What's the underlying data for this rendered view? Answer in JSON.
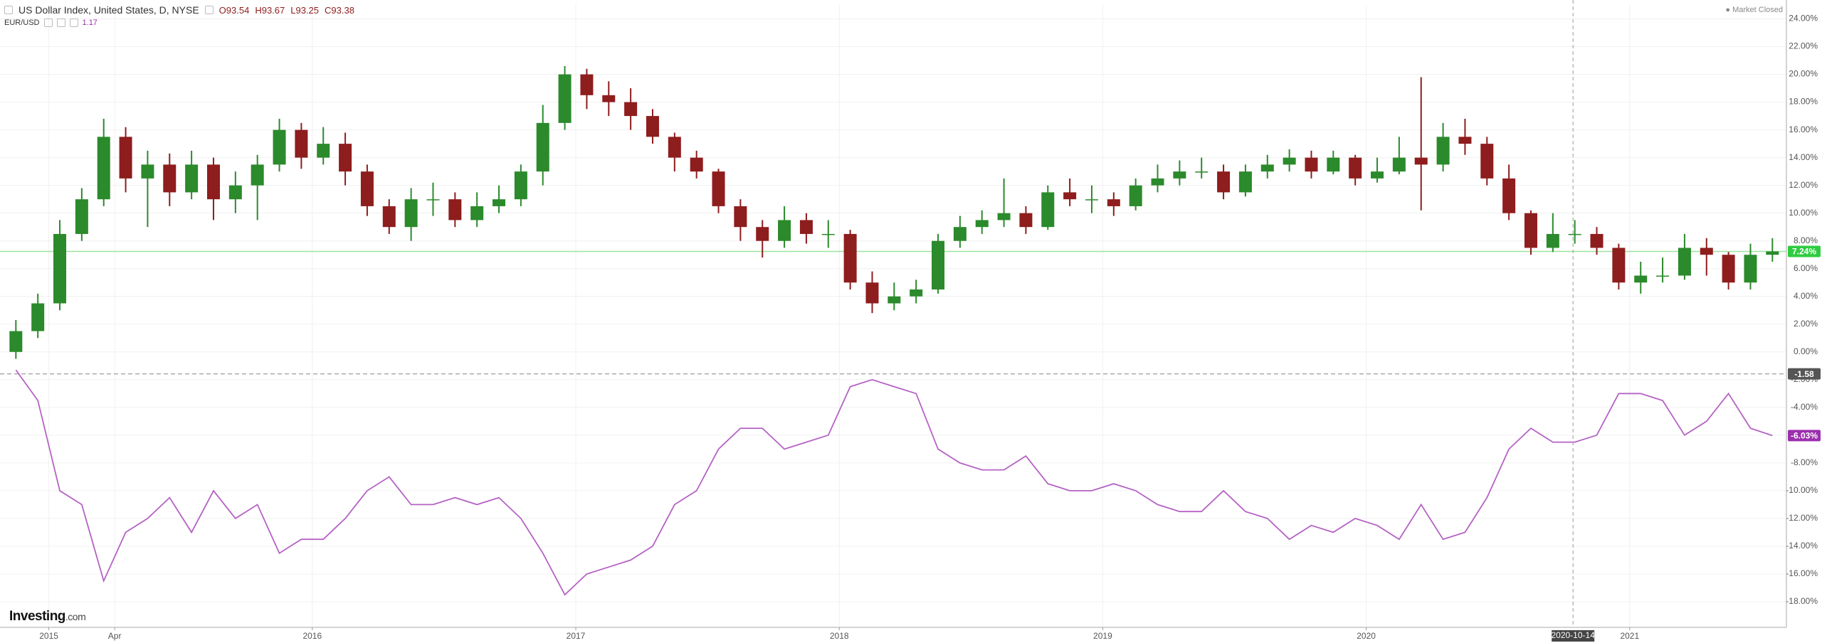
{
  "header": {
    "title": "US Dollar Index, United States, D, NYSE",
    "ohlc": [
      "O93.54",
      "H93.67",
      "L93.25",
      "C93.38"
    ],
    "compare": "EUR/USD",
    "compare_value": "1.17",
    "status": "Market Closed"
  },
  "logo": [
    "Investing",
    ".com"
  ],
  "chart_data": {
    "type": "candlestick",
    "x": [
      "2014-11",
      "2014-12",
      "2015-01",
      "2015-02",
      "2015-03",
      "2015-04",
      "2015-05",
      "2015-06",
      "2015-07",
      "2015-08",
      "2015-09",
      "2015-10",
      "2015-11",
      "2015-12",
      "2016-01",
      "2016-02",
      "2016-03",
      "2016-04",
      "2016-05",
      "2016-06",
      "2016-07",
      "2016-08",
      "2016-09",
      "2016-10",
      "2016-11",
      "2016-12",
      "2017-01",
      "2017-02",
      "2017-03",
      "2017-04",
      "2017-05",
      "2017-06",
      "2017-07",
      "2017-08",
      "2017-09",
      "2017-10",
      "2017-11",
      "2017-12",
      "2018-01",
      "2018-02",
      "2018-03",
      "2018-04",
      "2018-05",
      "2018-06",
      "2018-07",
      "2018-08",
      "2018-09",
      "2018-10",
      "2018-11",
      "2018-12",
      "2019-01",
      "2019-02",
      "2019-03",
      "2019-04",
      "2019-05",
      "2019-06",
      "2019-07",
      "2019-08",
      "2019-09",
      "2019-10",
      "2019-11",
      "2019-12",
      "2020-01",
      "2020-02",
      "2020-03",
      "2020-04",
      "2020-05",
      "2020-06",
      "2020-07",
      "2020-08",
      "2020-09",
      "2020-10",
      "2020-11",
      "2020-12",
      "2021-01",
      "2021-02",
      "2021-03",
      "2021-04",
      "2021-05",
      "2021-06",
      "2021-07"
    ],
    "series": [
      {
        "type": "candlestick",
        "up_color": "#2b8a2b",
        "down_color": "#8e1d1d",
        "open": [
          0,
          1.5,
          3.5,
          8.5,
          11,
          15.5,
          12.5,
          13.5,
          11.5,
          13.5,
          11,
          12,
          13.5,
          16,
          14,
          15,
          13,
          10.5,
          9,
          11,
          11,
          9.5,
          10.5,
          11,
          13,
          16.5,
          20,
          18.5,
          18,
          17,
          15.5,
          14,
          13,
          10.5,
          9,
          8,
          9.5,
          8.5,
          8.5,
          5,
          3.5,
          4,
          4.5,
          8,
          9,
          9.5,
          10,
          9,
          11.5,
          11,
          11,
          10.5,
          12,
          12.5,
          13,
          13,
          11.5,
          13,
          13.5,
          14,
          13,
          14,
          12.5,
          13,
          14,
          13.5,
          15.5,
          15,
          12.5,
          10,
          7.5,
          8.5,
          8.5,
          7.5,
          5,
          5.5,
          5.5,
          7.5,
          7,
          5,
          7
        ],
        "high": [
          2.3,
          4.2,
          9.5,
          11.8,
          16.8,
          16.2,
          14.5,
          14.3,
          14.5,
          14,
          13,
          14.2,
          16.8,
          16.5,
          16.2,
          15.8,
          13.5,
          11,
          11.8,
          12.2,
          11.5,
          11.5,
          12,
          13.5,
          17.8,
          20.6,
          20.4,
          19.5,
          19,
          17.5,
          15.8,
          14.5,
          13.2,
          11,
          9.5,
          10.5,
          10,
          9.5,
          8.8,
          5.8,
          5,
          5.2,
          8.5,
          9.8,
          10.2,
          12.5,
          10.5,
          12,
          12.5,
          12,
          11.5,
          12.5,
          13.5,
          13.8,
          14,
          13.5,
          13.5,
          14.2,
          14.6,
          14.5,
          14.5,
          14.2,
          14,
          15.5,
          19.8,
          16.5,
          16.8,
          15.5,
          13.5,
          10.2,
          10,
          9.5,
          9,
          7.8,
          6.5,
          6.8,
          8.5,
          8.2,
          7.2,
          7.8,
          8.2
        ],
        "low": [
          -0.5,
          1,
          3,
          8,
          10.5,
          11.5,
          9,
          10.5,
          11,
          9.5,
          10,
          9.5,
          13,
          13.2,
          13.5,
          12,
          9.8,
          8.5,
          8,
          9.8,
          9,
          9,
          10,
          10.5,
          12,
          16,
          17.5,
          17,
          16,
          15,
          13,
          12.5,
          10,
          8,
          6.8,
          7.5,
          7.8,
          7.5,
          4.5,
          2.8,
          3,
          3.5,
          4.2,
          7.5,
          8.5,
          9,
          8.5,
          8.8,
          10.5,
          10,
          9.8,
          10.2,
          11.5,
          12,
          12.5,
          11,
          11.2,
          12.5,
          13,
          12.5,
          12.8,
          12,
          12.2,
          12.8,
          10.2,
          13,
          14.2,
          12,
          9.5,
          7,
          7.2,
          7.8,
          7,
          4.5,
          4.2,
          5,
          5.2,
          5.5,
          4.5,
          4.5,
          6.5
        ],
        "close": [
          1.5,
          3.5,
          8.5,
          11,
          15.5,
          12.5,
          13.5,
          11.5,
          13.5,
          11,
          12,
          13.5,
          16,
          14,
          15,
          13,
          10.5,
          9,
          11,
          11,
          9.5,
          10.5,
          11,
          13,
          16.5,
          20,
          18.5,
          18,
          17,
          15.5,
          14,
          13,
          10.5,
          9,
          8,
          9.5,
          8.5,
          8.5,
          5,
          3.5,
          4,
          4.5,
          8,
          9,
          9.5,
          10,
          9,
          11.5,
          11,
          11,
          10.5,
          12,
          12.5,
          13,
          13,
          11.5,
          13,
          13.5,
          14,
          13,
          14,
          12.5,
          13,
          14,
          13.5,
          15.5,
          15,
          12.5,
          10,
          7.5,
          8.5,
          8.5,
          7.5,
          5,
          5.5,
          5.5,
          7.5,
          7,
          5,
          7,
          7.24
        ]
      },
      {
        "type": "line",
        "color": "#b562c4",
        "values": [
          -1.3,
          -3.5,
          -10,
          -11,
          -16.5,
          -13,
          -12,
          -10.5,
          -13,
          -10,
          -12,
          -11,
          -14.5,
          -13.5,
          -13.5,
          -12,
          -10,
          -9,
          -11,
          -11,
          -10.5,
          -11,
          -10.5,
          -12,
          -14.5,
          -17.5,
          -16,
          -15.5,
          -15,
          -14,
          -11,
          -10,
          -7,
          -5.5,
          -5.5,
          -7,
          -6.5,
          -6,
          -2.5,
          -2,
          -2.5,
          -3,
          -7,
          -8,
          -8.5,
          -8.5,
          -7.5,
          -9.5,
          -10,
          -10,
          -9.5,
          -10,
          -11,
          -11.5,
          -11.5,
          -10,
          -11.5,
          -12,
          -13.5,
          -12.5,
          -13,
          -12,
          -12.5,
          -13.5,
          -11,
          -13.5,
          -13,
          -10.5,
          -7,
          -5.5,
          -6.5,
          -6.5,
          -6,
          -3,
          -3,
          -3.5,
          -6,
          -5,
          -3,
          -5.5,
          -6.03
        ]
      }
    ],
    "ylim": [
      -20,
      25
    ],
    "yticks": [
      {
        "value": 24,
        "label": "24.00%"
      },
      {
        "value": 22,
        "label": "22.00%"
      },
      {
        "value": 20,
        "label": "20.00%"
      },
      {
        "value": 18,
        "label": "18.00%"
      },
      {
        "value": 16,
        "label": "16.00%"
      },
      {
        "value": 14,
        "label": "14.00%"
      },
      {
        "value": 12,
        "label": "12.00%"
      },
      {
        "value": 10,
        "label": "10.00%"
      },
      {
        "value": 8,
        "label": "8.00%"
      },
      {
        "value": 6,
        "label": "6.00%"
      },
      {
        "value": 4,
        "label": "4.00%"
      },
      {
        "value": 2,
        "label": "2.00%"
      },
      {
        "value": 0,
        "label": "0.00%"
      },
      {
        "value": -2,
        "label": "-2.00%"
      },
      {
        "value": -4,
        "label": "-4.00%"
      },
      {
        "value": -6,
        "label": "-6.00%"
      },
      {
        "value": -8,
        "label": "-8.00%"
      },
      {
        "value": -10,
        "label": "-10.00%"
      },
      {
        "value": -12,
        "label": "-12.00%"
      },
      {
        "value": -14,
        "label": "-14.00%"
      },
      {
        "value": -16,
        "label": "-16.00%"
      },
      {
        "value": -18,
        "label": "-18.00%"
      }
    ],
    "xticks": [
      {
        "value": "2015-01",
        "label": "2015"
      },
      {
        "value": "2015-04",
        "label": "Apr"
      },
      {
        "value": "2016-01",
        "label": "2016"
      },
      {
        "value": "2017-01",
        "label": "2017"
      },
      {
        "value": "2018-01",
        "label": "2018"
      },
      {
        "value": "2019-01",
        "label": "2019"
      },
      {
        "value": "2020-01",
        "label": "2020"
      },
      {
        "value": "2021-01",
        "label": "2021"
      }
    ],
    "grid": true,
    "price_lines": [
      {
        "value": 7.24,
        "label": "7.24%",
        "color": "#2ecc40",
        "line_color": "#9be39b",
        "style": "solid"
      },
      {
        "value": -1.58,
        "label": "-1.58",
        "color": "#555555",
        "line_color": "#aaaaaa",
        "style": "dashed"
      },
      {
        "value": -6.03,
        "label": "-6.03%",
        "color": "#9b2fae",
        "line_color": "none",
        "style": "none"
      }
    ],
    "crosshair_x": "2020-10-14"
  }
}
